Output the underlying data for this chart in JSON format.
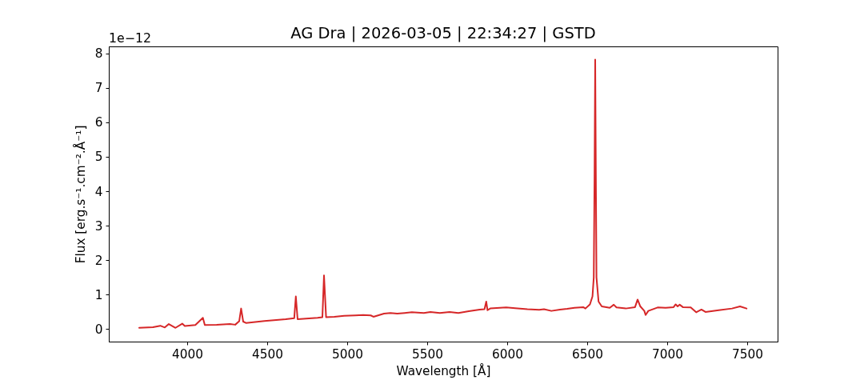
{
  "chart_data": {
    "type": "line",
    "title": "AG Dra | 2026-03-05 | 22:34:27 | GSTD",
    "xlabel": "Wavelength [Å]",
    "ylabel": "Flux [erg.s⁻¹.cm⁻².Å⁻¹]",
    "annotations": [
      "1e−12"
    ],
    "x": [
      3700,
      3786,
      3832,
      3860,
      3885,
      3927,
      3969,
      3985,
      4051,
      4098,
      4110,
      4184,
      4267,
      4300,
      4325,
      4337,
      4350,
      4367,
      4483,
      4616,
      4669,
      4679,
      4690,
      4815,
      4845,
      4855,
      4868,
      4920,
      4981,
      5050,
      5100,
      5147,
      5164,
      5230,
      5270,
      5313,
      5360,
      5404,
      5440,
      5479,
      5520,
      5579,
      5640,
      5695,
      5760,
      5828,
      5858,
      5869,
      5877,
      5894,
      5994,
      6050,
      6126,
      6200,
      6230,
      6276,
      6330,
      6375,
      6420,
      6475,
      6489,
      6517,
      6533,
      6541,
      6546,
      6550,
      6554,
      6558,
      6571,
      6591,
      6641,
      6666,
      6683,
      6741,
      6799,
      6815,
      6832,
      6857,
      6865,
      6882,
      6940,
      6990,
      7040,
      7053,
      7065,
      7078,
      7098,
      7147,
      7181,
      7214,
      7239,
      7322,
      7405,
      7455,
      7496
    ],
    "series": [
      {
        "color": "#d62728",
        "values": [
          0.04,
          0.06,
          0.1,
          0.05,
          0.15,
          0.04,
          0.16,
          0.09,
          0.12,
          0.33,
          0.12,
          0.13,
          0.15,
          0.13,
          0.23,
          0.6,
          0.22,
          0.18,
          0.24,
          0.29,
          0.32,
          0.95,
          0.29,
          0.33,
          0.35,
          1.56,
          0.35,
          0.36,
          0.39,
          0.4,
          0.41,
          0.4,
          0.36,
          0.45,
          0.47,
          0.45,
          0.47,
          0.49,
          0.48,
          0.47,
          0.5,
          0.47,
          0.5,
          0.47,
          0.52,
          0.57,
          0.58,
          0.8,
          0.55,
          0.6,
          0.63,
          0.61,
          0.58,
          0.56,
          0.58,
          0.53,
          0.57,
          0.59,
          0.62,
          0.64,
          0.6,
          0.72,
          0.95,
          1.5,
          4.5,
          7.82,
          4.5,
          1.5,
          0.8,
          0.66,
          0.62,
          0.71,
          0.63,
          0.6,
          0.64,
          0.86,
          0.66,
          0.53,
          0.41,
          0.53,
          0.63,
          0.62,
          0.64,
          0.72,
          0.66,
          0.71,
          0.64,
          0.63,
          0.49,
          0.57,
          0.5,
          0.55,
          0.6,
          0.66,
          0.6
        ]
      }
    ],
    "xlim": [
      3510,
      7690
    ],
    "ylim": [
      -0.36,
      8.2
    ],
    "xticks": [
      4000,
      4500,
      5000,
      5500,
      6000,
      6500,
      7000,
      7500
    ],
    "yticks": [
      0,
      1,
      2,
      3,
      4,
      5,
      6,
      7,
      8
    ],
    "grid": false,
    "line_style": "solid"
  }
}
